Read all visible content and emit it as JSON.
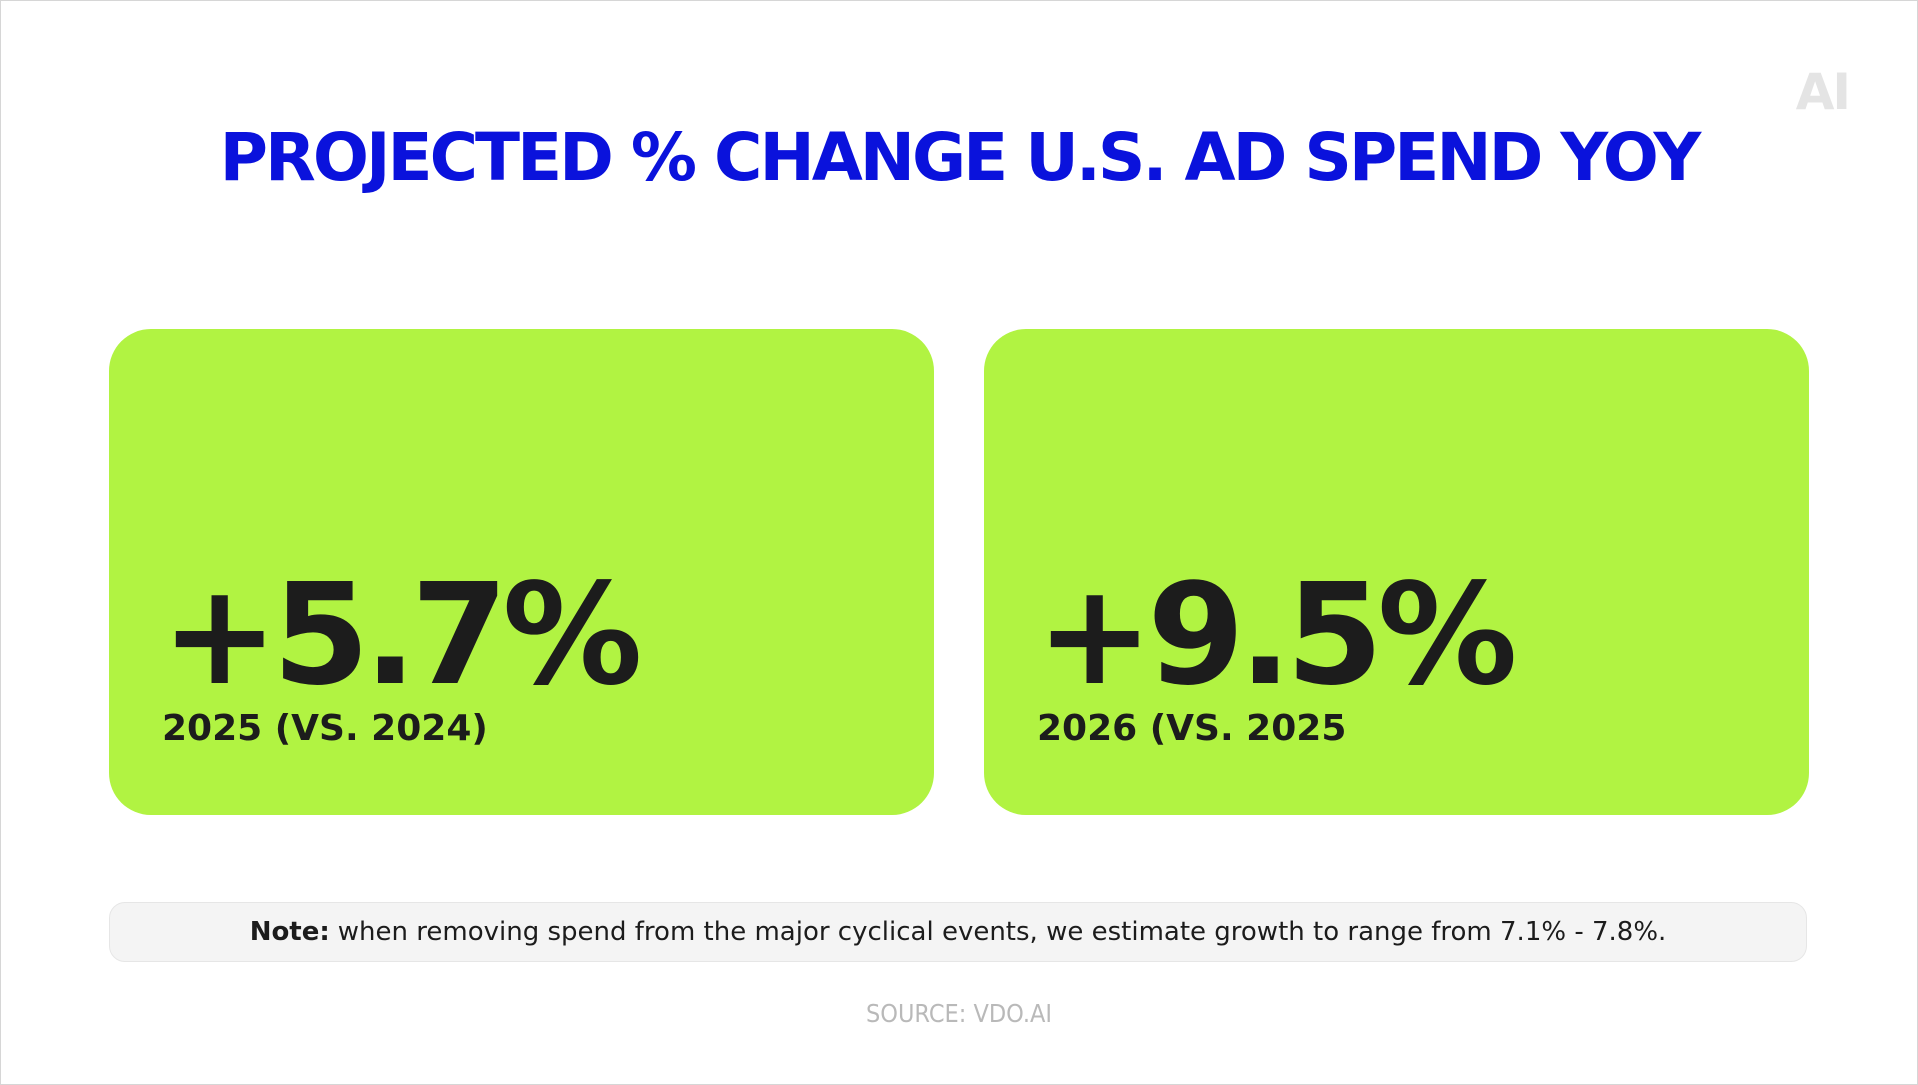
{
  "logo": {
    "text": "AI"
  },
  "title": "PROJECTED % CHANGE U.S. AD SPEND YOY",
  "cards": [
    {
      "value": "+5.7%",
      "label": "2025 (VS. 2024)"
    },
    {
      "value": "+9.5%",
      "label": "2026 (VS. 2025"
    }
  ],
  "note": {
    "label": "Note:",
    "text": "when removing spend from the major cyclical events, we estimate growth to range from 7.1% - 7.8%."
  },
  "source": "SOURCE: VDO.AI",
  "colors": {
    "title": "#0a12dc",
    "card_background": "#b1f342",
    "text_dark": "#1c1c1c",
    "note_background": "#f4f4f4",
    "source": "#b9b9b9",
    "logo": "#e4e4e4"
  }
}
